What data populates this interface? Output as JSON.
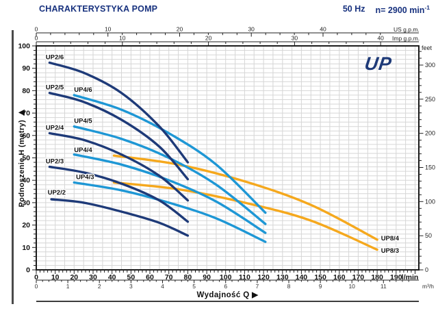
{
  "header": {
    "title": "CHARAKTERYSTYKA POMP",
    "frequency": "50 Hz",
    "speed": "n= 2900 min",
    "speed_sup": "-1"
  },
  "branding": {
    "logo": "UP"
  },
  "chart_data": {
    "type": "line",
    "title": "CHARAKTERYSTYKA POMP",
    "x_axis": {
      "title": "Wydajność Q  ▶",
      "primary_unit": "l/min",
      "range_lmin": [
        0,
        202
      ],
      "major_step": 10,
      "minor_step": 2,
      "labels": [
        0,
        10,
        20,
        30,
        40,
        50,
        60,
        70,
        80,
        90,
        100,
        110,
        120,
        130,
        140,
        150,
        160,
        170,
        180,
        190
      ]
    },
    "x_axis_secondary": {
      "unit": "m³/h",
      "lmin_per_unit": 16.6667,
      "major_step": 1,
      "minor_step": 0.2,
      "labels": [
        0,
        1,
        2,
        3,
        4,
        5,
        6,
        7,
        8,
        9,
        10,
        11
      ]
    },
    "x_axis_top_us": {
      "unit": "US g.p.m.",
      "lmin_per_unit": 3.785,
      "major_step": 10,
      "minor_step": 2,
      "labels": [
        0,
        10,
        20,
        30,
        40
      ]
    },
    "x_axis_top_imp": {
      "unit": "Imp g.p.m.",
      "lmin_per_unit": 4.546,
      "major_step": 10,
      "minor_step": 2,
      "labels": [
        0,
        10,
        20,
        30,
        40
      ]
    },
    "y_axis": {
      "title": "Podnoszenie H  (metry)  ▶",
      "unit": "metry",
      "range_m": [
        0,
        100
      ],
      "major_step": 10,
      "minor_step": 2,
      "labels": [
        0,
        10,
        20,
        30,
        40,
        50,
        60,
        70,
        80,
        90,
        100
      ]
    },
    "y_axis_right": {
      "unit": "feet",
      "m_per_unit": 0.3048,
      "major_step": 50,
      "minor_step": 10,
      "labels": [
        0,
        50,
        100,
        150,
        200,
        250,
        300
      ]
    },
    "grid": {
      "show": true,
      "x_step_lmin": 5,
      "y_step_m": 2
    },
    "series": [
      {
        "name": "UP8/4",
        "color": "#f5a81d",
        "points": [
          [
            41,
            51
          ],
          [
            75,
            47
          ],
          [
            110,
            39.5
          ],
          [
            145,
            29
          ],
          [
            180,
            13.5
          ]
        ],
        "label_pos": [
          182,
          14
        ]
      },
      {
        "name": "UP8/3",
        "color": "#f5a81d",
        "points": [
          [
            41,
            39
          ],
          [
            75,
            36
          ],
          [
            110,
            30
          ],
          [
            145,
            22
          ],
          [
            180,
            9
          ]
        ],
        "label_pos": [
          182,
          8.5
        ]
      },
      {
        "name": "UP4/6",
        "color": "#1e97d5",
        "points": [
          [
            20,
            78
          ],
          [
            45,
            71.5
          ],
          [
            70,
            61
          ],
          [
            95,
            47
          ],
          [
            121,
            25.5
          ]
        ],
        "label_pos": [
          20,
          80.5
        ]
      },
      {
        "name": "UP4/5",
        "color": "#1e97d5",
        "points": [
          [
            20,
            64
          ],
          [
            45,
            58.5
          ],
          [
            70,
            50
          ],
          [
            95,
            38
          ],
          [
            121,
            20.5
          ]
        ],
        "label_pos": [
          20,
          66.5
        ]
      },
      {
        "name": "UP4/4",
        "color": "#1e97d5",
        "points": [
          [
            20,
            51.5
          ],
          [
            45,
            47
          ],
          [
            70,
            40
          ],
          [
            95,
            30.5
          ],
          [
            121,
            16.5
          ]
        ],
        "label_pos": [
          20,
          53.5
        ]
      },
      {
        "name": "UP4/3",
        "color": "#1e97d5",
        "points": [
          [
            20,
            39
          ],
          [
            45,
            35.5
          ],
          [
            70,
            30
          ],
          [
            95,
            23
          ],
          [
            121,
            12.5
          ]
        ],
        "label_pos": [
          21,
          41.5
        ]
      },
      {
        "name": "UP2/6",
        "color": "#1e3a78",
        "points": [
          [
            7,
            92.5
          ],
          [
            25,
            88
          ],
          [
            45,
            79
          ],
          [
            65,
            64
          ],
          [
            80,
            48
          ]
        ],
        "label_pos": [
          5,
          95
        ]
      },
      {
        "name": "UP2/5",
        "color": "#1e3a78",
        "points": [
          [
            7,
            79
          ],
          [
            25,
            75
          ],
          [
            45,
            67
          ],
          [
            65,
            55
          ],
          [
            80,
            40.5
          ]
        ],
        "label_pos": [
          5,
          81.5
        ]
      },
      {
        "name": "UP2/4",
        "color": "#1e3a78",
        "points": [
          [
            7,
            61
          ],
          [
            25,
            58
          ],
          [
            45,
            51.5
          ],
          [
            65,
            42
          ],
          [
            80,
            31
          ]
        ],
        "label_pos": [
          5,
          63.5
        ]
      },
      {
        "name": "UP2/3",
        "color": "#1e3a78",
        "points": [
          [
            7,
            46
          ],
          [
            25,
            43.5
          ],
          [
            45,
            38.5
          ],
          [
            65,
            31
          ],
          [
            80,
            21.5
          ]
        ],
        "label_pos": [
          5,
          48.5
        ]
      },
      {
        "name": "UP2/2",
        "color": "#1e3a78",
        "points": [
          [
            8,
            31.5
          ],
          [
            25,
            30
          ],
          [
            45,
            26
          ],
          [
            65,
            21
          ],
          [
            80,
            15.3
          ]
        ],
        "label_pos": [
          6,
          34.5
        ]
      }
    ]
  }
}
